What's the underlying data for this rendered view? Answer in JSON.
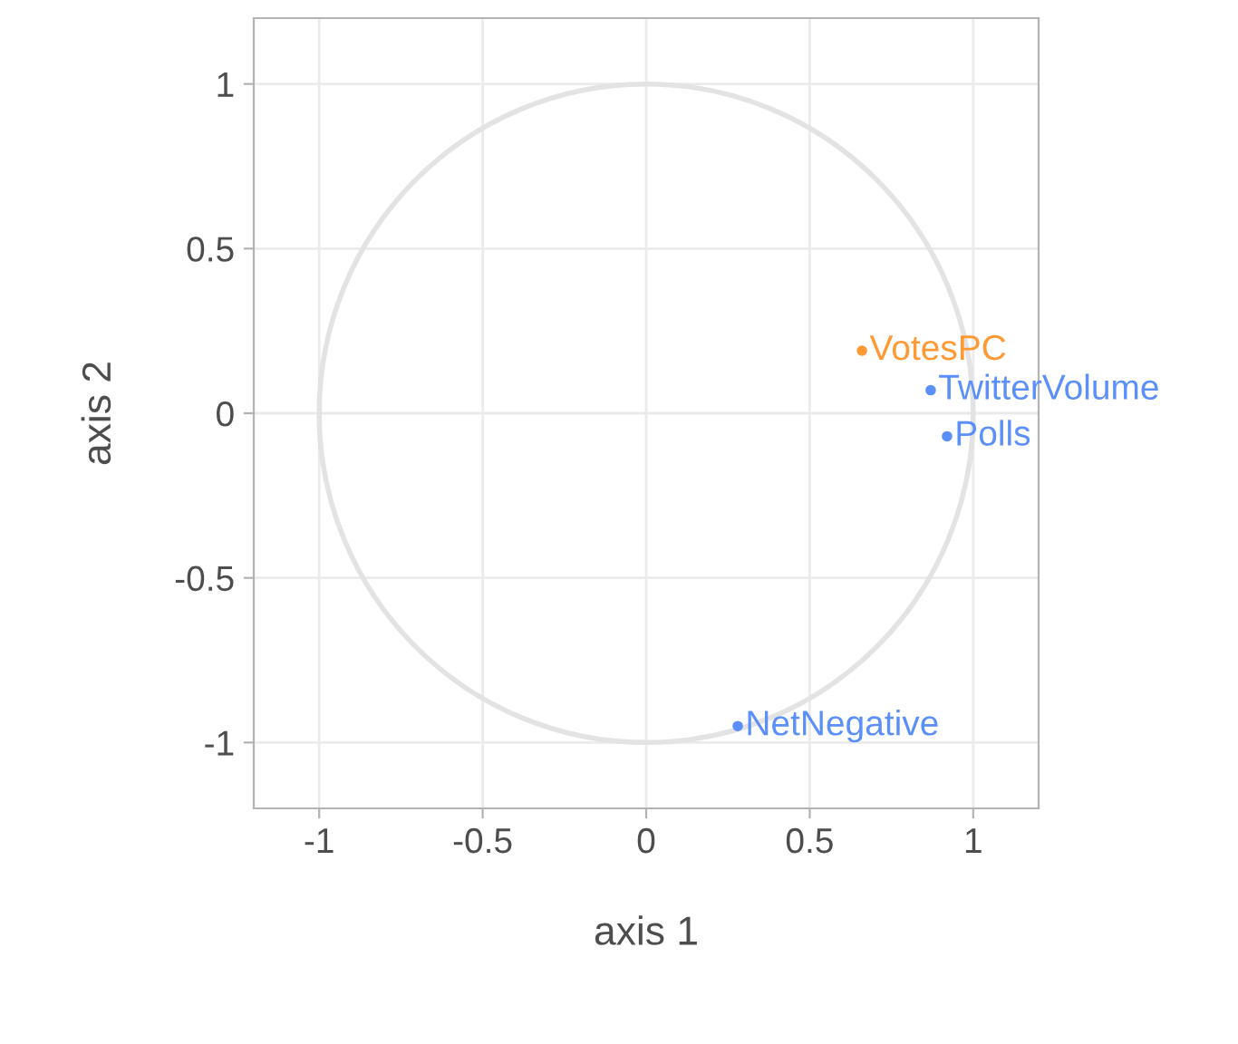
{
  "chart_data": {
    "type": "scatter",
    "xlabel": "axis 1",
    "ylabel": "axis 2",
    "xlim": [
      -1.2,
      1.2
    ],
    "ylim": [
      -1.2,
      1.2
    ],
    "xticks": [
      -1,
      -0.5,
      0,
      0.5,
      1
    ],
    "yticks": [
      -1,
      -0.5,
      0,
      0.5,
      1
    ],
    "grid": true,
    "marker": "circle",
    "series": [
      {
        "color": "#ff9933",
        "x": [
          0.66
        ],
        "values": [
          0.19
        ],
        "value_labels": [
          "VotesPC"
        ]
      },
      {
        "color": "#5b8ff9",
        "x": [
          0.87,
          0.92,
          0.28
        ],
        "values": [
          0.07,
          -0.07,
          -0.95
        ],
        "value_labels": [
          "TwitterVolume",
          "Polls",
          "NetNegative"
        ]
      }
    ]
  }
}
